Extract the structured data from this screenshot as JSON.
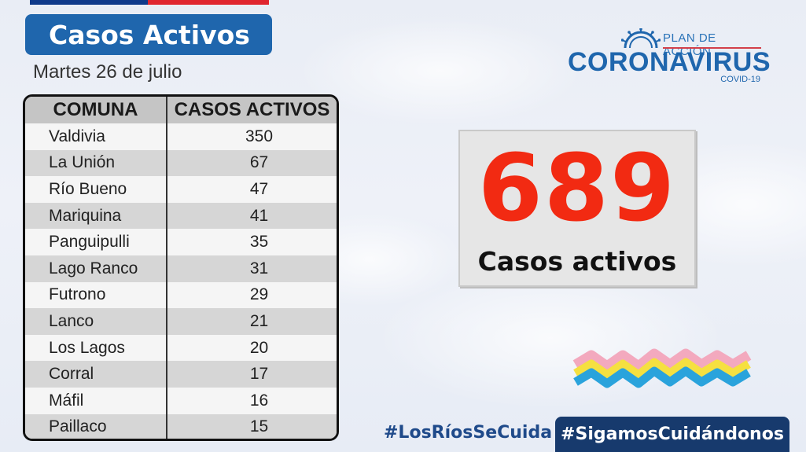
{
  "header": {
    "title": "Casos Activos",
    "date": "Martes 26 de julio"
  },
  "table": {
    "col_comuna": "COMUNA",
    "col_casos": "CASOS ACTIVOS",
    "rows": [
      {
        "comuna": "Valdivia",
        "casos": "350"
      },
      {
        "comuna": "La Unión",
        "casos": "67"
      },
      {
        "comuna": "Río Bueno",
        "casos": "47"
      },
      {
        "comuna": "Mariquina",
        "casos": "41"
      },
      {
        "comuna": "Panguipulli",
        "casos": "35"
      },
      {
        "comuna": "Lago Ranco",
        "casos": "31"
      },
      {
        "comuna": "Futrono",
        "casos": "29"
      },
      {
        "comuna": "Lanco",
        "casos": "21"
      },
      {
        "comuna": "Los Lagos",
        "casos": "20"
      },
      {
        "comuna": "Corral",
        "casos": "17"
      },
      {
        "comuna": "Máfil",
        "casos": "16"
      },
      {
        "comuna": "Paillaco",
        "casos": "15"
      }
    ]
  },
  "logo": {
    "plan": "PLAN DE ACCIÓN",
    "name": "CORONAVIRUS",
    "sub": "COVID-19"
  },
  "total": {
    "number": "689",
    "label": "Casos activos"
  },
  "hashtags": {
    "region": "#LosRíosSeCuida",
    "campaign": "#SigamosCuidándonos"
  },
  "colors": {
    "title_bg": "#1f66ad",
    "number": "#f22a12",
    "campaign_bg": "#173a6d",
    "flag_blue": "#0f3a8a",
    "flag_red": "#e0262f"
  }
}
